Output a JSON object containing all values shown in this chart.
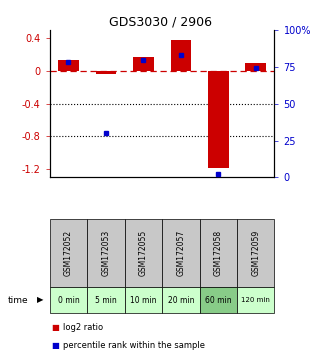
{
  "title": "GDS3030 / 2906",
  "samples": [
    "GSM172052",
    "GSM172053",
    "GSM172055",
    "GSM172057",
    "GSM172058",
    "GSM172059"
  ],
  "time_labels": [
    "0 min",
    "5 min",
    "10 min",
    "20 min",
    "60 min",
    "120 min"
  ],
  "log2_ratio": [
    0.13,
    -0.04,
    0.17,
    0.38,
    -1.18,
    0.1
  ],
  "percentile_rank": [
    78,
    30,
    80,
    83,
    2,
    74
  ],
  "ylim_left": [
    -1.3,
    0.5
  ],
  "ylim_right": [
    0,
    100
  ],
  "yticks_left": [
    -1.2,
    -0.8,
    -0.4,
    0.0,
    0.4
  ],
  "yticks_right": [
    0,
    25,
    50,
    75,
    100
  ],
  "bar_color_red": "#cc0000",
  "bar_color_blue": "#0000cc",
  "dashed_line_color": "#cc0000",
  "dotted_line_color": "#000000",
  "label_gsm_bg": "#c8c8c8",
  "label_time_bg_light": "#ccffcc",
  "label_time_bg_dark": "#88cc88",
  "time_colors_idx": [
    0,
    0,
    0,
    0,
    1,
    0
  ],
  "legend_red_label": "log2 ratio",
  "legend_blue_label": "percentile rank within the sample",
  "bar_width": 0.55
}
